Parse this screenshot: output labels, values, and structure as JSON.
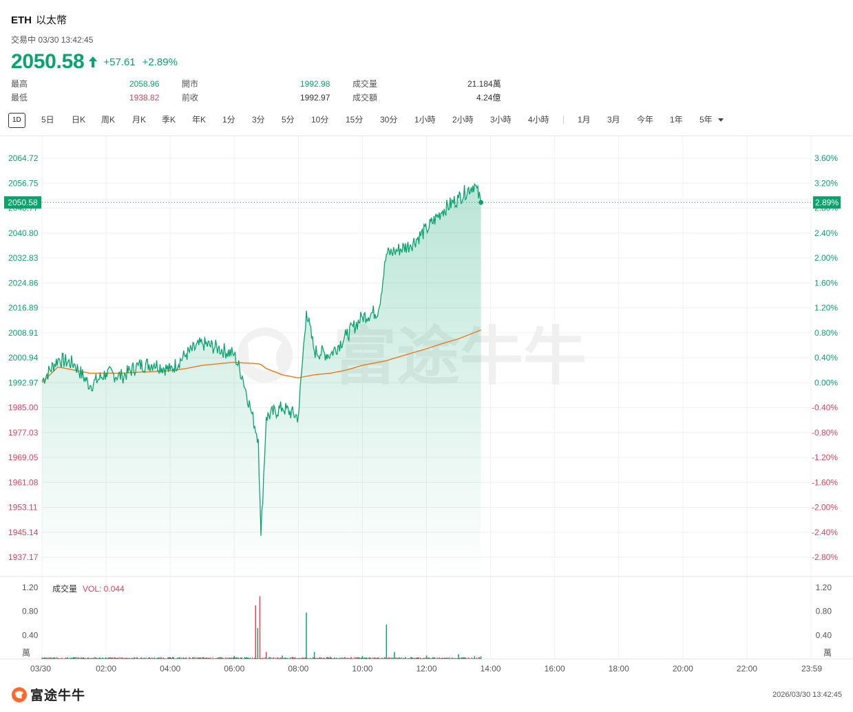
{
  "header": {
    "symbol": "ETH",
    "name": "以太幣",
    "status": "交易中 03/30 13:42:45",
    "price": "2050.58",
    "change": "+57.61",
    "change_pct": "+2.89%",
    "up_color": "#0aa36e",
    "down_color": "#e0405e"
  },
  "stats": {
    "high_label": "最高",
    "high_value": "2058.96",
    "low_label": "最低",
    "low_value": "1938.82",
    "open_label": "開市",
    "open_value": "1992.98",
    "prev_close_label": "前收",
    "prev_close_value": "1992.97",
    "volume_label": "成交量",
    "volume_value": "21.184萬",
    "turnover_label": "成交額",
    "turnover_value": "4.24億"
  },
  "tabs": {
    "active": "1D",
    "items": [
      "5日",
      "日K",
      "周K",
      "月K",
      "季K",
      "年K",
      "1分",
      "3分",
      "5分",
      "10分",
      "15分",
      "30分",
      "1小時",
      "2小時",
      "3小時",
      "4小時"
    ],
    "ranges": [
      "1月",
      "3月",
      "今年",
      "1年",
      "5年"
    ]
  },
  "chart": {
    "price_ticks_left": [
      "2064.72",
      "2056.75",
      "2048.77",
      "2040.80",
      "2032.83",
      "2024.86",
      "2016.89",
      "2008.91",
      "2000.94",
      "1992.97",
      "1985.00",
      "1977.03",
      "1969.05",
      "1961.08",
      "1953.11",
      "1945.14",
      "1937.17"
    ],
    "pct_ticks_right": [
      "3.60%",
      "3.20%",
      "2.80%",
      "2.40%",
      "2.00%",
      "1.60%",
      "1.20%",
      "0.80%",
      "0.40%",
      "0.00%",
      "-0.40%",
      "-0.80%",
      "-1.20%",
      "-1.60%",
      "-2.00%",
      "-2.40%",
      "-2.80%"
    ],
    "current_price_tag": "2050.58",
    "current_pct_tag": "2.89%",
    "watermark": "富途牛牛",
    "volume_label": "成交量",
    "volume_indicator": "VOL: 0.044",
    "volume_ticks": [
      "1.20",
      "0.80",
      "0.40",
      "萬"
    ],
    "time_ticks": [
      "03/30",
      "02:00",
      "04:00",
      "06:00",
      "08:00",
      "10:00",
      "12:00",
      "14:00",
      "16:00",
      "18:00",
      "20:00",
      "22:00",
      "23:59"
    ],
    "line_color": "#0aa36e",
    "avg_color": "#e87a1e"
  },
  "chart_data": {
    "type": "line",
    "title": "",
    "xlabel": "",
    "ylabel": "",
    "ylim": [
      1937.17,
      2064.72
    ],
    "x": [
      "00:00",
      "00:30",
      "01:00",
      "01:30",
      "02:00",
      "02:30",
      "03:00",
      "03:30",
      "04:00",
      "04:30",
      "05:00",
      "05:30",
      "06:00",
      "06:15",
      "06:30",
      "06:45",
      "06:50",
      "07:00",
      "07:30",
      "08:00",
      "08:15",
      "08:30",
      "09:00",
      "09:30",
      "10:00",
      "10:30",
      "10:45",
      "11:00",
      "11:30",
      "12:00",
      "12:30",
      "13:00",
      "13:30",
      "13:42"
    ],
    "series": [
      {
        "name": "",
        "values": [
          1993.5,
          2000.5,
          1999.0,
          1992.0,
          1996.0,
          1995.0,
          1998.5,
          1999.0,
          1997.0,
          2002.0,
          2005.5,
          2004.0,
          2002.0,
          1995.0,
          1985.0,
          1975.0,
          1944.0,
          1982.0,
          1985.0,
          1982.0,
          2016.0,
          2003.0,
          2002.0,
          2008.0,
          2014.0,
          2016.0,
          2034.0,
          2035.0,
          2037.0,
          2042.0,
          2048.0,
          2052.0,
          2056.5,
          2050.58
        ]
      },
      {
        "name": "",
        "values": [
          1993.0,
          1998.0,
          1997.0,
          1996.0,
          1996.0,
          1996.0,
          1996.3,
          1996.5,
          1996.8,
          1997.5,
          1998.5,
          1999.0,
          1999.5,
          1999.3,
          1999.2,
          1999.0,
          1998.8,
          1997.5,
          1995.5,
          1994.5,
          1995.0,
          1995.5,
          1996.0,
          1997.0,
          1998.5,
          1999.5,
          2000.0,
          2000.8,
          2002.3,
          2003.8,
          2005.5,
          2007.0,
          2009.0,
          2009.8
        ]
      }
    ],
    "volume": {
      "ymax": 1.2,
      "unit": "萬",
      "values_x": [
        "00:00",
        "01:00",
        "02:00",
        "04:00",
        "06:00",
        "06:40",
        "06:44",
        "06:48",
        "07:00",
        "07:30",
        "08:15",
        "08:30",
        "09:00",
        "10:00",
        "10:45",
        "11:00",
        "12:00",
        "13:00",
        "13:30",
        "13:42"
      ],
      "values": [
        0.02,
        0.03,
        0.02,
        0.03,
        0.05,
        0.9,
        0.52,
        1.05,
        0.12,
        0.06,
        0.78,
        0.12,
        0.04,
        0.05,
        0.58,
        0.12,
        0.06,
        0.08,
        0.05,
        0.044
      ]
    }
  }
}
